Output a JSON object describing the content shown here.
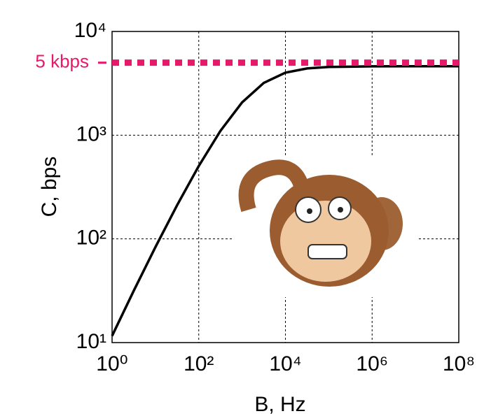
{
  "chart_data": {
    "type": "line",
    "x": [
      1,
      3.162,
      10,
      31.62,
      100,
      316.2,
      1000,
      3162,
      10000,
      31623,
      100000,
      1000000,
      10000000,
      100000000
    ],
    "values": [
      11.6,
      31.6,
      83.3,
      211,
      504,
      1099,
      2070,
      3190,
      4005,
      4399,
      4544,
      4609,
      4616,
      4616
    ],
    "color": "#000000",
    "x_label": "B, Hz",
    "y_label": "C, bps",
    "xlim": [
      1,
      100000000
    ],
    "ylim": [
      10,
      10000
    ],
    "log_x": true,
    "log_y": true,
    "grid": true,
    "xticks": [
      {
        "value": 1,
        "label": "10⁰"
      },
      {
        "value": 100,
        "label": "10²"
      },
      {
        "value": 10000,
        "label": "10⁴"
      },
      {
        "value": 1000000,
        "label": "10⁶"
      },
      {
        "value": 100000000,
        "label": "10⁸"
      }
    ],
    "yticks": [
      {
        "value": 10,
        "label": "10¹"
      },
      {
        "value": 100,
        "label": "10²"
      },
      {
        "value": 1000,
        "label": "10³"
      },
      {
        "value": 10000,
        "label": "10⁴"
      }
    ],
    "reference_line": {
      "value": 5000,
      "label": "5 kbps",
      "color": "#e8196b"
    }
  }
}
